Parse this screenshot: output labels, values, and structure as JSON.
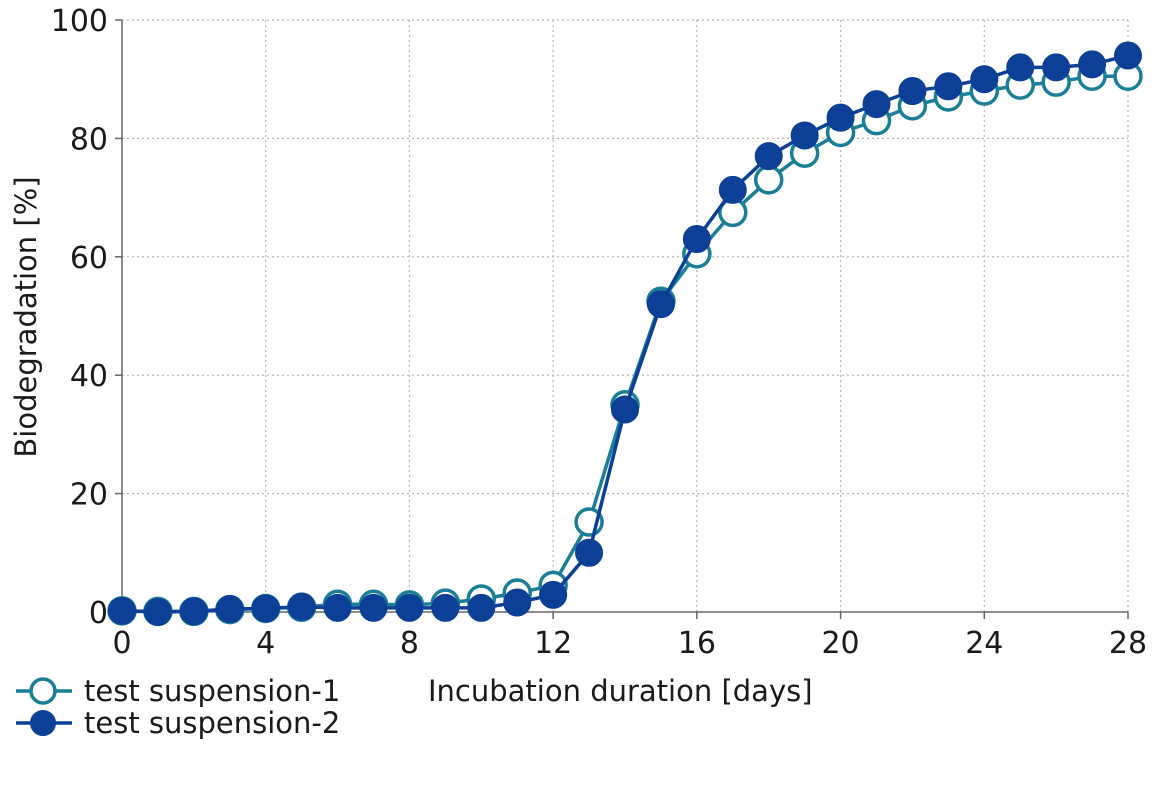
{
  "chart_data": {
    "type": "line",
    "title": "",
    "xlabel": "Incubation duration [days]",
    "ylabel": "Biodegradation [%]",
    "xlim": [
      0,
      28
    ],
    "ylim": [
      0,
      100
    ],
    "xticks": [
      0,
      4,
      8,
      12,
      16,
      20,
      24,
      28
    ],
    "yticks": [
      0,
      20,
      40,
      60,
      80,
      100
    ],
    "xtick_labels": [
      "0",
      "4",
      "8",
      "12",
      "16",
      "20",
      "24",
      "28"
    ],
    "ytick_labels": [
      "0",
      "20",
      "40",
      "60",
      "80",
      "100"
    ],
    "grid": true,
    "legend_position": "bottom-left",
    "series": [
      {
        "name": "test suspension-1",
        "marker": "hollow-circle",
        "color": "#1a7f96",
        "x": [
          0,
          1,
          2,
          3,
          4,
          5,
          6,
          7,
          8,
          9,
          10,
          11,
          12,
          13,
          14,
          15,
          16,
          17,
          18,
          19,
          20,
          21,
          22,
          23,
          24,
          25,
          26,
          27,
          28
        ],
        "values": [
          0.2,
          0.1,
          0.1,
          0.4,
          0.6,
          0.8,
          1.3,
          1.3,
          1.2,
          1.5,
          2.2,
          3.2,
          4.5,
          15.2,
          35.0,
          52.5,
          60.5,
          67.5,
          73.0,
          77.5,
          81.0,
          83.0,
          85.5,
          87.0,
          88.0,
          89.0,
          89.5,
          90.5,
          90.5
        ]
      },
      {
        "name": "test suspension-2",
        "marker": "filled-circle",
        "color": "#0c3f96",
        "x": [
          0,
          1,
          2,
          3,
          4,
          5,
          6,
          7,
          8,
          9,
          10,
          11,
          12,
          13,
          14,
          15,
          16,
          17,
          18,
          19,
          20,
          21,
          22,
          23,
          24,
          25,
          26,
          27,
          28
        ],
        "values": [
          0.2,
          0.0,
          0.1,
          0.5,
          0.6,
          0.9,
          0.7,
          0.7,
          0.7,
          0.7,
          0.7,
          1.6,
          2.9,
          10.0,
          34.2,
          52.0,
          63.0,
          71.3,
          77.0,
          80.5,
          83.5,
          85.8,
          88.0,
          88.8,
          90.0,
          92.0,
          92.0,
          92.5,
          94.0
        ]
      }
    ]
  }
}
